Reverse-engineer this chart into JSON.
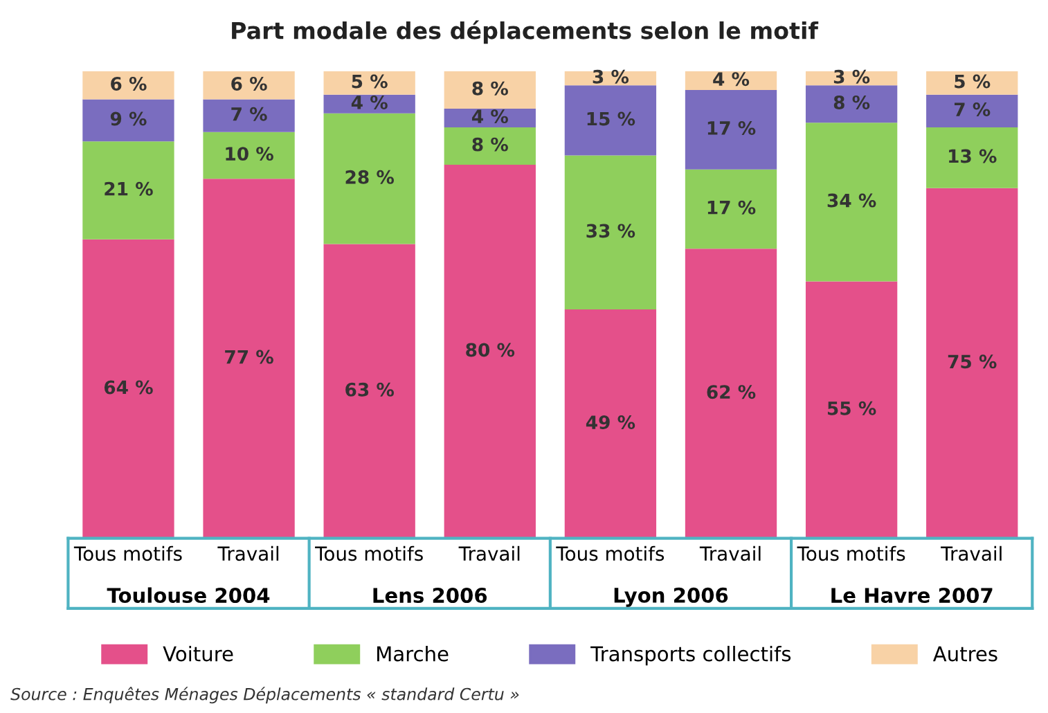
{
  "chart_data": {
    "type": "bar",
    "stacked": true,
    "title": "Part modale des déplacements selon le motif",
    "categories": [
      "Tous motifs",
      "Travail",
      "Tous motifs",
      "Travail",
      "Tous motifs",
      "Travail",
      "Tous motifs",
      "Travail"
    ],
    "series": [
      {
        "name": "Voiture",
        "color": "#e4508a",
        "values": [
          64,
          77,
          63,
          80,
          49,
          62,
          55,
          75
        ],
        "value_labels": [
          "64 %",
          "77 %",
          "63 %",
          "80 %",
          "49 %",
          "62 %",
          "55 %",
          "75 %"
        ]
      },
      {
        "name": "Marche",
        "color": "#8fcf5c",
        "values": [
          21,
          10,
          28,
          8,
          33,
          17,
          34,
          13
        ],
        "value_labels": [
          "21 %",
          "10 %",
          "28 %",
          "8 %",
          "33 %",
          "17 %",
          "34 %",
          "13 %"
        ]
      },
      {
        "name": "Transports collectifs",
        "color": "#7a6dbf",
        "values": [
          9,
          7,
          4,
          4,
          15,
          17,
          8,
          7
        ],
        "value_labels": [
          "9 %",
          "7 %",
          "4 %",
          "4 %",
          "15 %",
          "17 %",
          "8 %",
          "7 %"
        ]
      },
      {
        "name": "Autres",
        "color": "#f8d2a6",
        "values": [
          6,
          6,
          5,
          8,
          3,
          4,
          3,
          5
        ],
        "value_labels": [
          "6 %",
          "6 %",
          "5 %",
          "8 %",
          "3 %",
          "4 %",
          "3 %",
          "5 %"
        ]
      }
    ],
    "ylim": [
      0,
      100
    ],
    "tick_labels": "x",
    "grid": false,
    "legend": "bottom",
    "annotations": [
      "Toulouse 2004",
      "Lens 2006",
      "Lyon 2006",
      "Le Havre 2007",
      "Source : Enquêtes Ménages Déplacements « standard Certu »"
    ]
  }
}
